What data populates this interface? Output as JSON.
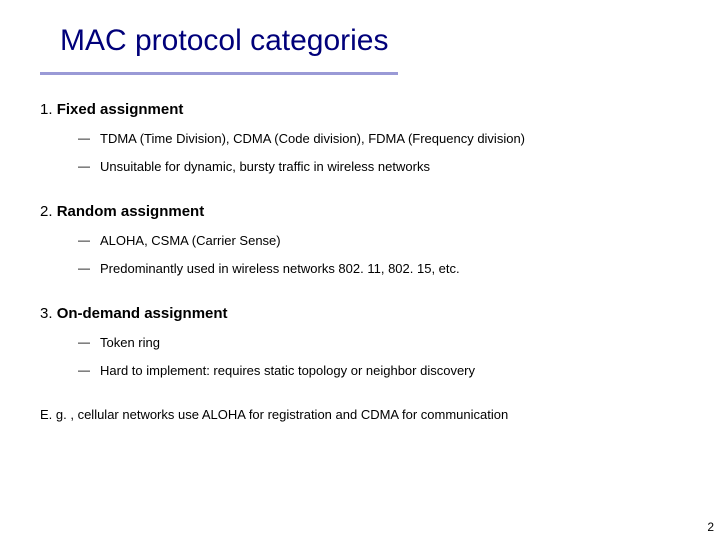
{
  "title": "MAC protocol categories",
  "colors": {
    "title_color": "#00007a",
    "rule_color": "#9a9ad6",
    "text_color": "#000000",
    "background": "#ffffff"
  },
  "typography": {
    "title_fontsize": 30,
    "section_header_fontsize": 15,
    "subitem_fontsize": 13,
    "footer_fontsize": 13,
    "pagenum_fontsize": 12,
    "font_family": "Verdana"
  },
  "sections": [
    {
      "num": "1.",
      "title": "Fixed assignment",
      "items": [
        "TDMA (Time Division), CDMA (Code division), FDMA (Frequency division)",
        "Unsuitable for dynamic, bursty traffic in wireless networks"
      ]
    },
    {
      "num": "2.",
      "title": "Random assignment",
      "items": [
        "ALOHA, CSMA (Carrier Sense)",
        "Predominantly used in wireless networks 802. 11, 802. 15, etc."
      ]
    },
    {
      "num": "3.",
      "title": "On-demand assignment",
      "items": [
        "Token ring",
        "Hard to implement: requires static topology or neighbor discovery"
      ]
    }
  ],
  "footer": "E. g. , cellular networks use ALOHA for registration and CDMA for communication",
  "page_number": "2"
}
